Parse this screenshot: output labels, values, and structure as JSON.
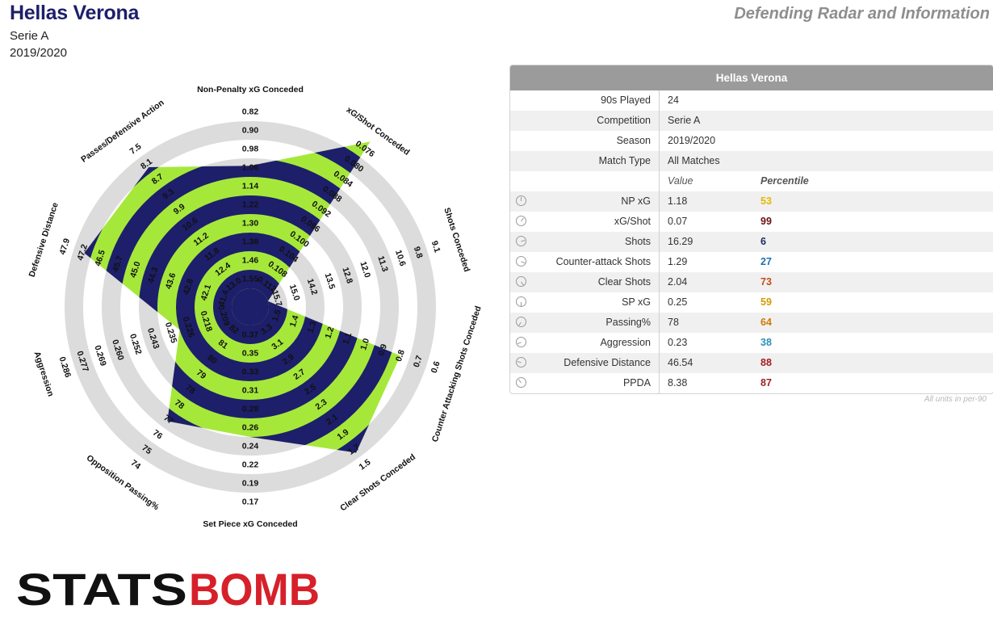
{
  "header": {
    "team": "Hellas Verona",
    "competition": "Serie A",
    "season": "2019/2020",
    "page_title": "Defending Radar and Information"
  },
  "table": {
    "title": "Hellas Verona",
    "info_rows": [
      {
        "label": "90s Played",
        "value": "24"
      },
      {
        "label": "Competition",
        "value": "Serie A"
      },
      {
        "label": "Season",
        "value": "2019/2020"
      },
      {
        "label": "Match Type",
        "value": "All Matches"
      }
    ],
    "value_header": "Value",
    "percentile_header": "Percentile",
    "metrics": [
      {
        "icon": "dial-icon",
        "label": "NP xG",
        "value": "1.18",
        "percentile": "53",
        "color": "#e6b800"
      },
      {
        "icon": "dial-icon",
        "label": "xG/Shot",
        "value": "0.07",
        "percentile": "99",
        "color": "#6b1010"
      },
      {
        "icon": "dial-icon",
        "label": "Shots",
        "value": "16.29",
        "percentile": "6",
        "color": "#1b2a5e"
      },
      {
        "icon": "dial-icon",
        "label": "Counter-attack Shots",
        "value": "1.29",
        "percentile": "27",
        "color": "#2070b0"
      },
      {
        "icon": "dial-icon",
        "label": "Clear Shots",
        "value": "2.04",
        "percentile": "73",
        "color": "#c0501a"
      },
      {
        "icon": "dial-icon",
        "label": "SP xG",
        "value": "0.25",
        "percentile": "59",
        "color": "#d49a00"
      },
      {
        "icon": "dial-icon",
        "label": "Passing%",
        "value": "78",
        "percentile": "64",
        "color": "#d07a00"
      },
      {
        "icon": "dial-icon",
        "label": "Aggression",
        "value": "0.23",
        "percentile": "38",
        "color": "#2a93b8"
      },
      {
        "icon": "dial-icon",
        "label": "Defensive Distance",
        "value": "46.54",
        "percentile": "88",
        "color": "#a32020"
      },
      {
        "icon": "dial-icon",
        "label": "PPDA",
        "value": "8.38",
        "percentile": "87",
        "color": "#a32020"
      }
    ],
    "footnote": "All units in per-90"
  },
  "chart_data": {
    "type": "radar",
    "colors": {
      "fill_a": "#a6e83a",
      "fill_b": "#1d1f6b",
      "ring": "#dcdcdc"
    },
    "axes": [
      {
        "label": "Non-Penalty xG Conceded",
        "ticks": [
          "0.82",
          "0.90",
          "0.98",
          "1.06",
          "1.14",
          "1.22",
          "1.30",
          "1.38",
          "1.46",
          "1.55"
        ],
        "value": 1.18
      },
      {
        "label": "xG/Shot Conceded",
        "ticks": [
          "0.076",
          "0.080",
          "0.084",
          "0.088",
          "0.092",
          "0.096",
          "0.100",
          "0.104",
          "0.108",
          "0.112"
        ],
        "value": 0.07
      },
      {
        "label": "Shots Conceded",
        "ticks": [
          "9.1",
          "9.8",
          "10.6",
          "11.3",
          "12.0",
          "12.8",
          "13.5",
          "14.2",
          "15.0",
          "15.7"
        ],
        "value": 16.29
      },
      {
        "label": "Counter Attacking Shots Conceded",
        "ticks": [
          "0.6",
          "0.7",
          "0.8",
          "0.9",
          "1.0",
          "1.1",
          "1.2",
          "1.3",
          "1.4",
          "1.5"
        ],
        "value": 1.29
      },
      {
        "label": "Clear Shots Conceded",
        "ticks": [
          "1.5",
          "1.7",
          "1.9",
          "2.1",
          "2.3",
          "2.5",
          "2.7",
          "2.9",
          "3.1",
          "3.3"
        ],
        "value": 2.04
      },
      {
        "label": "Set Piece xG Conceded",
        "ticks": [
          "0.17",
          "0.19",
          "0.22",
          "0.24",
          "0.26",
          "0.28",
          "0.31",
          "0.33",
          "0.35",
          "0.37"
        ],
        "value": 0.25
      },
      {
        "label": "Opposition Passing%",
        "ticks": [
          "74",
          "75",
          "76",
          "77",
          "78",
          "78",
          "79",
          "80",
          "81",
          "82"
        ],
        "value": 78
      },
      {
        "label": "Aggression",
        "ticks": [
          "0.286",
          "0.277",
          "0.269",
          "0.260",
          "0.252",
          "0.243",
          "0.235",
          "0.226",
          "0.218",
          "0.209"
        ],
        "value": 0.23
      },
      {
        "label": "Defensive Distance",
        "ticks": [
          "47.9",
          "47.2",
          "46.5",
          "45.7",
          "45.0",
          "44.3",
          "43.6",
          "42.8",
          "42.1",
          "41.4"
        ],
        "value": 46.54
      },
      {
        "label": "Passes/Defensive Action",
        "ticks": [
          "7.5",
          "8.1",
          "8.7",
          "9.3",
          "9.9",
          "10.6",
          "11.2",
          "11.8",
          "12.4",
          "13.0"
        ],
        "value": 8.38
      }
    ],
    "shape_fraction": [
      0.66,
      1.0,
      0.0,
      0.75,
      0.87,
      0.6,
      0.66,
      0.3,
      0.84,
      0.83
    ]
  },
  "logo": {
    "text_left": "STATS",
    "text_right": "BOMB",
    "color_left": "#111111",
    "color_right": "#d6202a"
  }
}
